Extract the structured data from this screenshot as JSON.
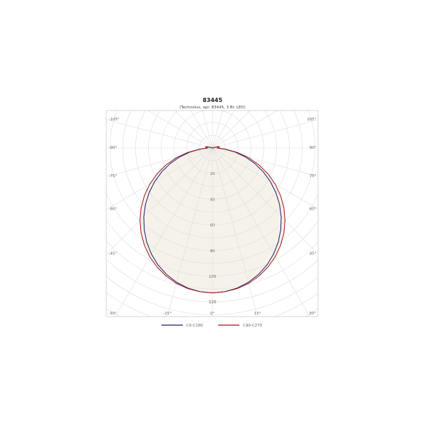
{
  "chart_data": {
    "type": "polar",
    "title": "83445",
    "subtitle": "(Technolux, apr. 83445, 3 Br. LED)",
    "radial_ticks": [
      20,
      40,
      60,
      80,
      100,
      120
    ],
    "angle_ticks": [
      -105,
      -90,
      -75,
      -60,
      -45,
      -30,
      -15,
      0,
      15,
      30,
      45,
      60,
      75,
      90,
      105
    ],
    "angle_unit": "°",
    "grid": true,
    "legend_position": "bottom",
    "series": [
      {
        "name": "C0-C180",
        "color": "#1a1a6e",
        "gamma": [
          0,
          5,
          10,
          15,
          20,
          25,
          30,
          35,
          40,
          45,
          50,
          55,
          60,
          65,
          70,
          75,
          80,
          85,
          90,
          95,
          100,
          105,
          110
        ],
        "values": [
          113,
          112.4,
          110.9,
          108.4,
          104.9,
          100.6,
          95.4,
          89.5,
          82.9,
          75.8,
          68.2,
          60.2,
          52.0,
          43.6,
          35.0,
          26.4,
          17.8,
          9.5,
          4,
          5,
          5.2,
          3.5,
          0
        ]
      },
      {
        "name": "C90-C270",
        "color": "#a01818",
        "gamma": [
          0,
          5,
          10,
          15,
          20,
          25,
          30,
          35,
          40,
          45,
          50,
          55,
          60,
          65,
          70,
          75,
          80,
          85,
          90,
          95,
          100,
          105,
          110
        ],
        "values": [
          113,
          112.5,
          111.3,
          109.2,
          106.2,
          102.4,
          97.9,
          92.6,
          86.6,
          80,
          72.7,
          64.9,
          56.6,
          47.8,
          38.7,
          29.3,
          19.7,
          10.5,
          4,
          5,
          5.5,
          4,
          0
        ]
      }
    ],
    "fill_color": "#f6f2ea"
  }
}
